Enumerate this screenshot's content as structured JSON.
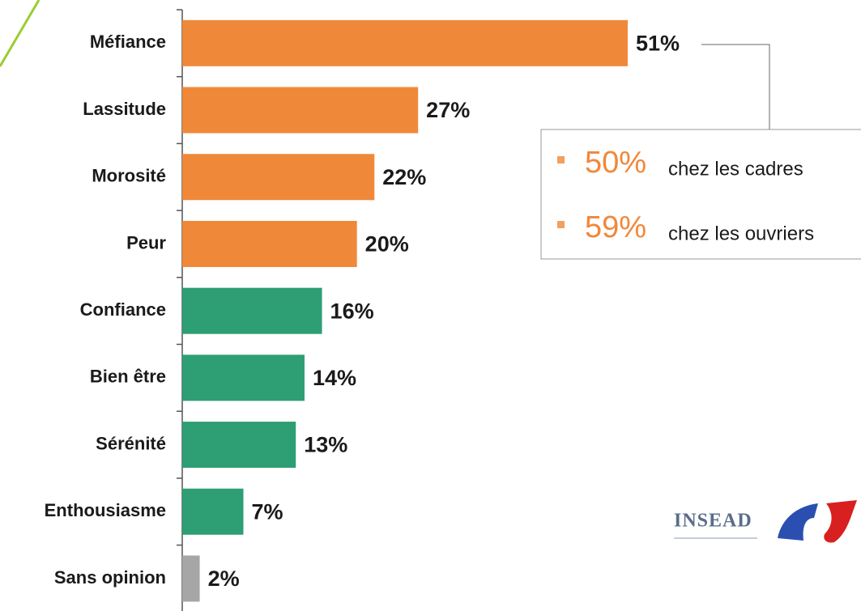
{
  "chart_data": {
    "type": "bar",
    "orientation": "horizontal",
    "categories": [
      "Méfiance",
      "Lassitude",
      "Morosité",
      "Peur",
      "Confiance",
      "Bien être",
      "Sérénité",
      "Enthousiasme",
      "Sans opinion"
    ],
    "values": [
      51,
      27,
      22,
      20,
      16,
      14,
      13,
      7,
      2
    ],
    "value_labels": [
      "51%",
      "27%",
      "22%",
      "20%",
      "16%",
      "14%",
      "13%",
      "7%",
      "2%"
    ],
    "colors": [
      "#f0883a",
      "#f0883a",
      "#f0883a",
      "#f0883a",
      "#2e9e74",
      "#2e9e74",
      "#2e9e74",
      "#2e9e74",
      "#a6a6a6"
    ],
    "annotation": {
      "items": [
        {
          "value": "50%",
          "text": "chez les cadres"
        },
        {
          "value": "59%",
          "text": "chez les ouvriers"
        }
      ]
    },
    "logo": "INSEAD"
  }
}
